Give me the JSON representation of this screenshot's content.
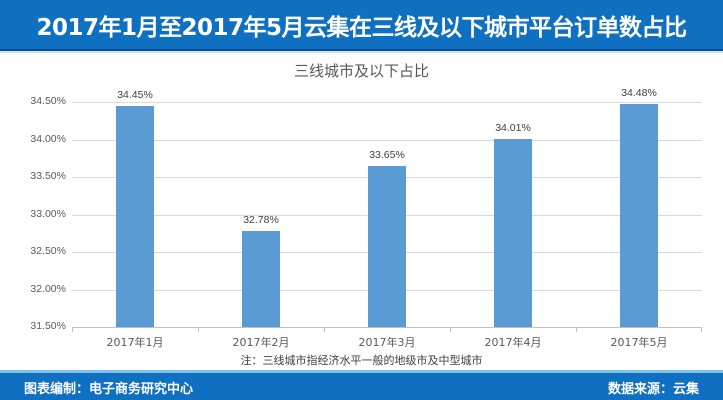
{
  "header": {
    "title": "2017年1月至2017年5月云集在三线及以下城市平台订单数占比"
  },
  "chart_data": {
    "type": "bar",
    "title": "三线城市及以下占比",
    "categories": [
      "2017年1月",
      "2017年2月",
      "2017年3月",
      "2017年4月",
      "2017年5月"
    ],
    "values": [
      34.45,
      32.78,
      33.65,
      34.01,
      34.48
    ],
    "value_labels": [
      "34.45%",
      "32.78%",
      "33.65%",
      "34.01%",
      "34.48%"
    ],
    "xlabel": "",
    "ylabel": "",
    "ylim": [
      31.5,
      34.5
    ],
    "yticks": [
      "34.50%",
      "34.00%",
      "33.50%",
      "33.00%",
      "32.50%",
      "32.00%",
      "31.50%"
    ],
    "grid": true,
    "legend": "none",
    "bar_color": "#5b9bd5"
  },
  "note": "注：三线城市指经济水平一般的地级市及中型城市",
  "footer": {
    "left": "图表编制：电子商务研究中心",
    "right": "数据来源：云集"
  },
  "colors": {
    "header_bg": "#0f6fc1",
    "bar": "#5b9bd5",
    "footer_bg": "#0f6fc1"
  }
}
